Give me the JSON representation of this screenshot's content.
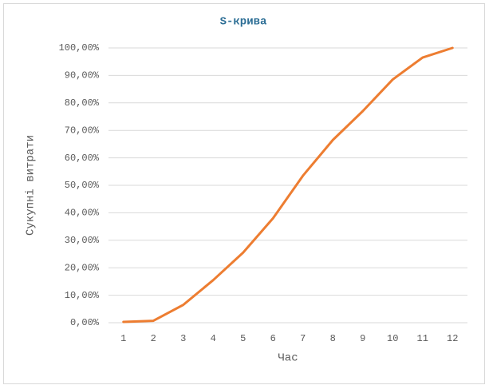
{
  "chart_data": {
    "type": "line",
    "title": "S-крива",
    "x_label": "Час",
    "y_label": "Сукупні витрати",
    "categories": [
      "1",
      "2",
      "3",
      "4",
      "5",
      "6",
      "7",
      "8",
      "9",
      "10",
      "11",
      "12"
    ],
    "series": [
      {
        "name": "S-крива",
        "color": "#ed7d31",
        "values": [
          0.3,
          0.7,
          6.5,
          15.5,
          25.5,
          38,
          53.5,
          66.5,
          77,
          88.5,
          96.5,
          100
        ]
      }
    ],
    "ylim": [
      0,
      100
    ],
    "yticks": [
      {
        "value": 0,
        "label": "0,00%"
      },
      {
        "value": 10,
        "label": "10,00%"
      },
      {
        "value": 20,
        "label": "20,00%"
      },
      {
        "value": 30,
        "label": "30,00%"
      },
      {
        "value": 40,
        "label": "40,00%"
      },
      {
        "value": 50,
        "label": "50,00%"
      },
      {
        "value": 60,
        "label": "60,00%"
      },
      {
        "value": 70,
        "label": "70,00%"
      },
      {
        "value": 80,
        "label": "80,00%"
      },
      {
        "value": 90,
        "label": "90,00%"
      },
      {
        "value": 100,
        "label": "100,00%"
      }
    ],
    "grid": true,
    "legend": false
  }
}
